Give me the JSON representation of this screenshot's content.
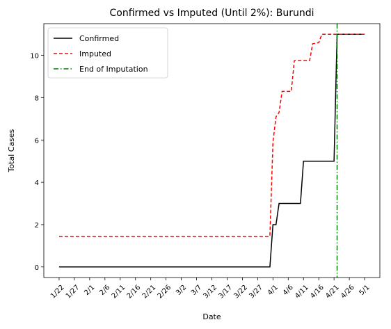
{
  "chart_data": {
    "type": "line",
    "title": "Confirmed vs Imputed (Until 2%): Burundi",
    "xlabel": "Date",
    "ylabel": "Total Cases",
    "x_ticks": [
      "1/22",
      "1/27",
      "2/1",
      "2/6",
      "2/11",
      "2/16",
      "2/21",
      "2/26",
      "3/2",
      "3/7",
      "3/12",
      "3/17",
      "3/22",
      "3/27",
      "4/1",
      "4/6",
      "4/11",
      "4/16",
      "4/21",
      "4/26",
      "5/1"
    ],
    "y_ticks": [
      0,
      2,
      4,
      6,
      8,
      10
    ],
    "ylim": [
      -0.5,
      11.5
    ],
    "grid": false,
    "legend_position": "top-left",
    "series": [
      {
        "name": "Confirmed",
        "color": "#000000",
        "style": "solid",
        "points": [
          [
            "1/22",
            0
          ],
          [
            "3/31",
            0
          ],
          [
            "4/1",
            2
          ],
          [
            "4/2",
            2
          ],
          [
            "4/3",
            3
          ],
          [
            "4/10",
            3
          ],
          [
            "4/11",
            5
          ],
          [
            "4/21",
            5
          ],
          [
            "4/22",
            11
          ],
          [
            "5/1",
            11
          ]
        ]
      },
      {
        "name": "Imputed",
        "color": "#ff0000",
        "style": "dashed",
        "points": [
          [
            "1/22",
            1.45
          ],
          [
            "3/31",
            1.45
          ],
          [
            "4/1",
            5.9
          ],
          [
            "4/2",
            7.1
          ],
          [
            "4/3",
            7.3
          ],
          [
            "4/4",
            8.3
          ],
          [
            "4/7",
            8.3
          ],
          [
            "4/8",
            9.75
          ],
          [
            "4/13",
            9.75
          ],
          [
            "4/14",
            10.55
          ],
          [
            "4/16",
            10.6
          ],
          [
            "4/17",
            11
          ],
          [
            "5/1",
            11
          ]
        ]
      },
      {
        "name": "End of Imputation",
        "color": "#008000",
        "style": "dashdot",
        "vline_x": "4/22"
      }
    ]
  }
}
